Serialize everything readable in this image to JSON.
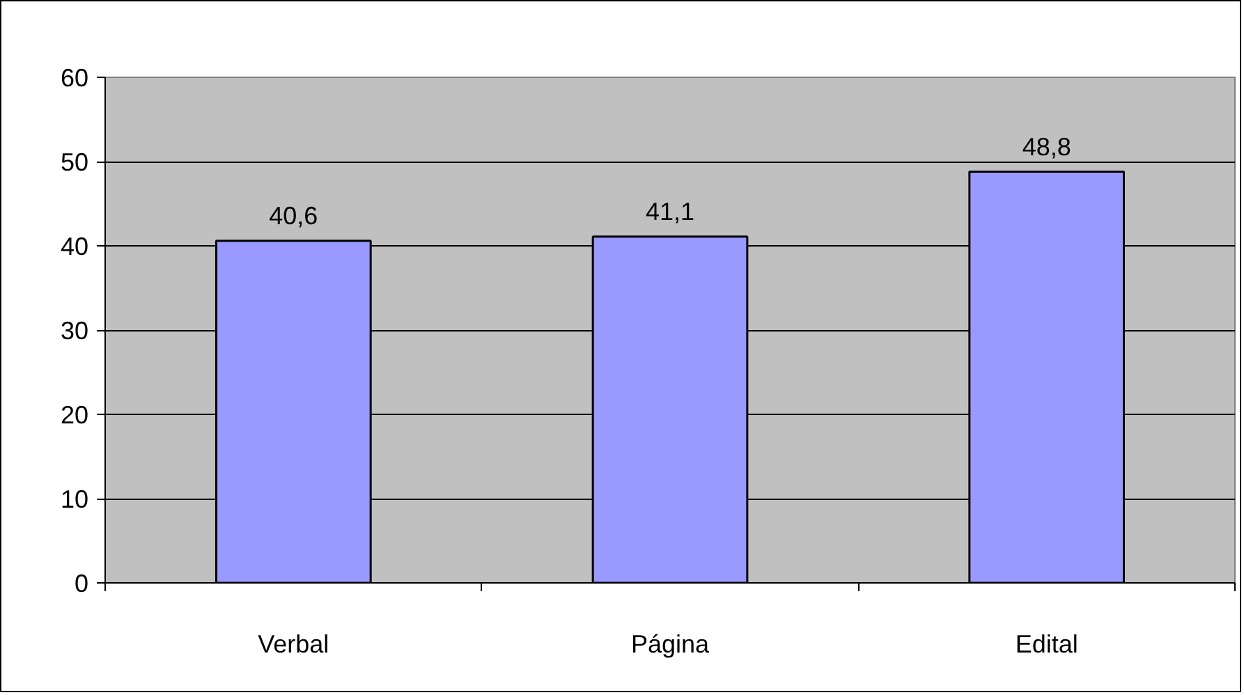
{
  "chart_data": {
    "type": "bar",
    "categories": [
      "Verbal",
      "Página",
      "Edital"
    ],
    "values": [
      40.6,
      41.1,
      48.8
    ],
    "color": "#9999ff",
    "value_labels": [
      "40,6",
      "41,1",
      "48,8"
    ],
    "ylim": [
      0,
      60
    ],
    "yticks": [
      0,
      10,
      20,
      30,
      40,
      50,
      60
    ],
    "grid": "y"
  }
}
